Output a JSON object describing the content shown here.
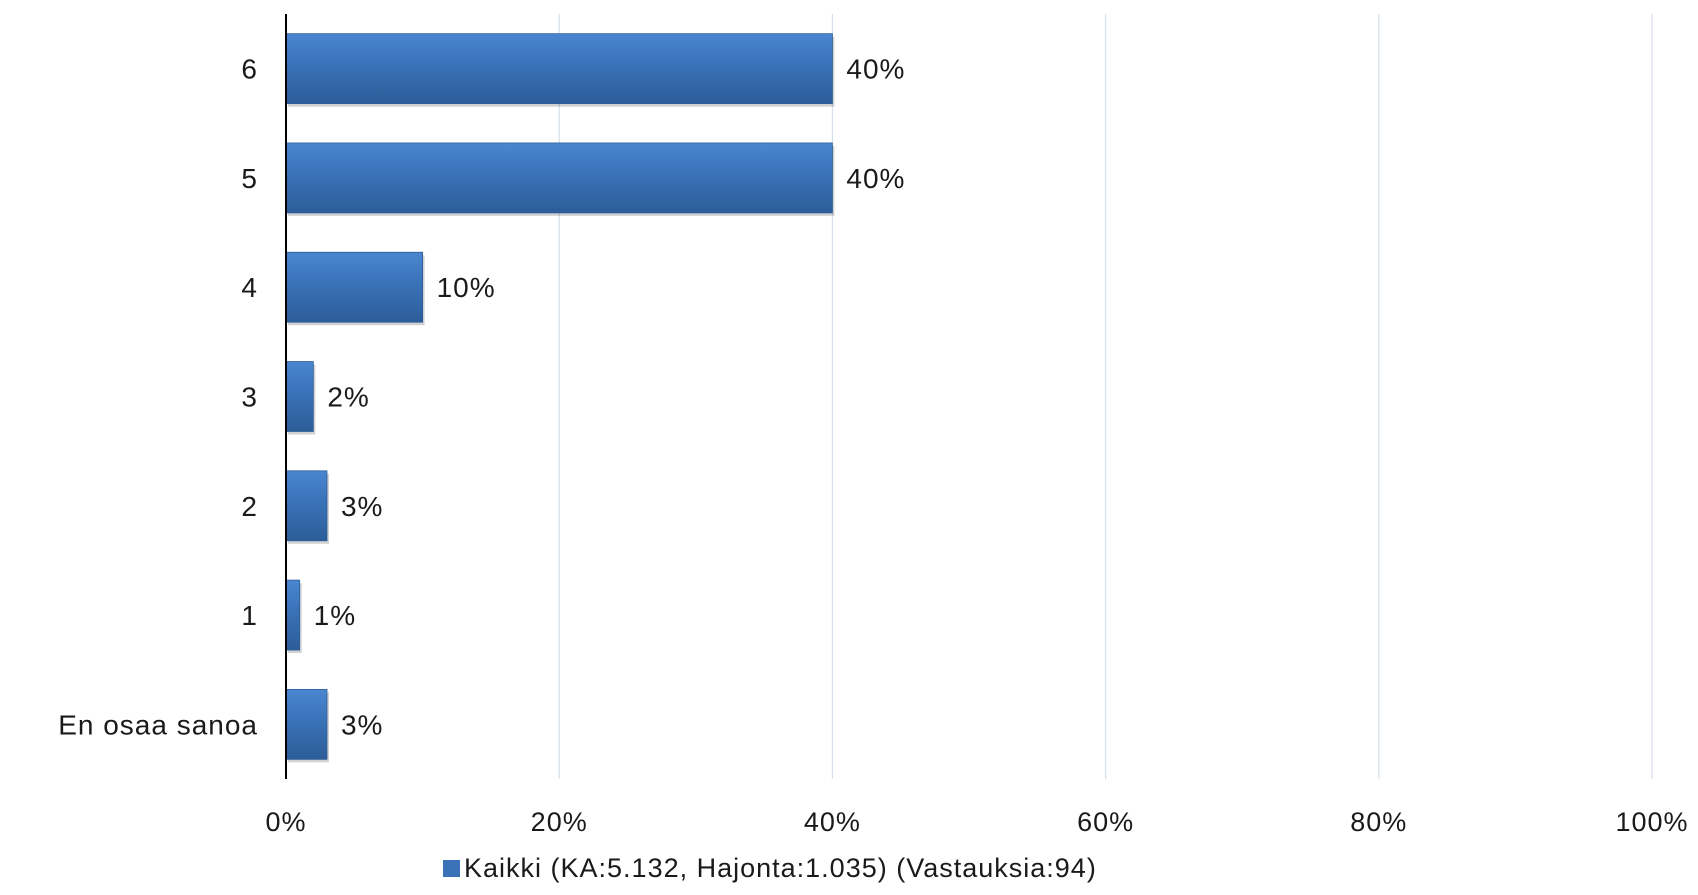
{
  "chart_data": {
    "type": "bar",
    "orientation": "horizontal",
    "categories": [
      "6",
      "5",
      "4",
      "3",
      "2",
      "1",
      "En osaa sanoa"
    ],
    "series": [
      {
        "name": "Kaikki (KA:5.132, Hajonta:1.035) (Vastauksia:94)",
        "values": [
          40,
          40,
          10,
          2,
          3,
          1,
          3
        ],
        "data_labels": [
          "40%",
          "40%",
          "10%",
          "2%",
          "3%",
          "1%",
          "3%"
        ]
      }
    ],
    "xlim": [
      0,
      100
    ],
    "x_ticks": [
      0,
      20,
      40,
      60,
      80,
      100
    ],
    "x_tick_labels": [
      "0%",
      "20%",
      "40%",
      "60%",
      "80%",
      "100%"
    ],
    "grid": "vertical",
    "legend_position": "bottom",
    "colors": {
      "bar": "#3a72b8",
      "bar_light": "#4a86cf",
      "bar_dark": "#2c5d98",
      "grid": "#d6e0ea",
      "axis": "#000000",
      "legend_marker": "#3a72b8"
    }
  }
}
